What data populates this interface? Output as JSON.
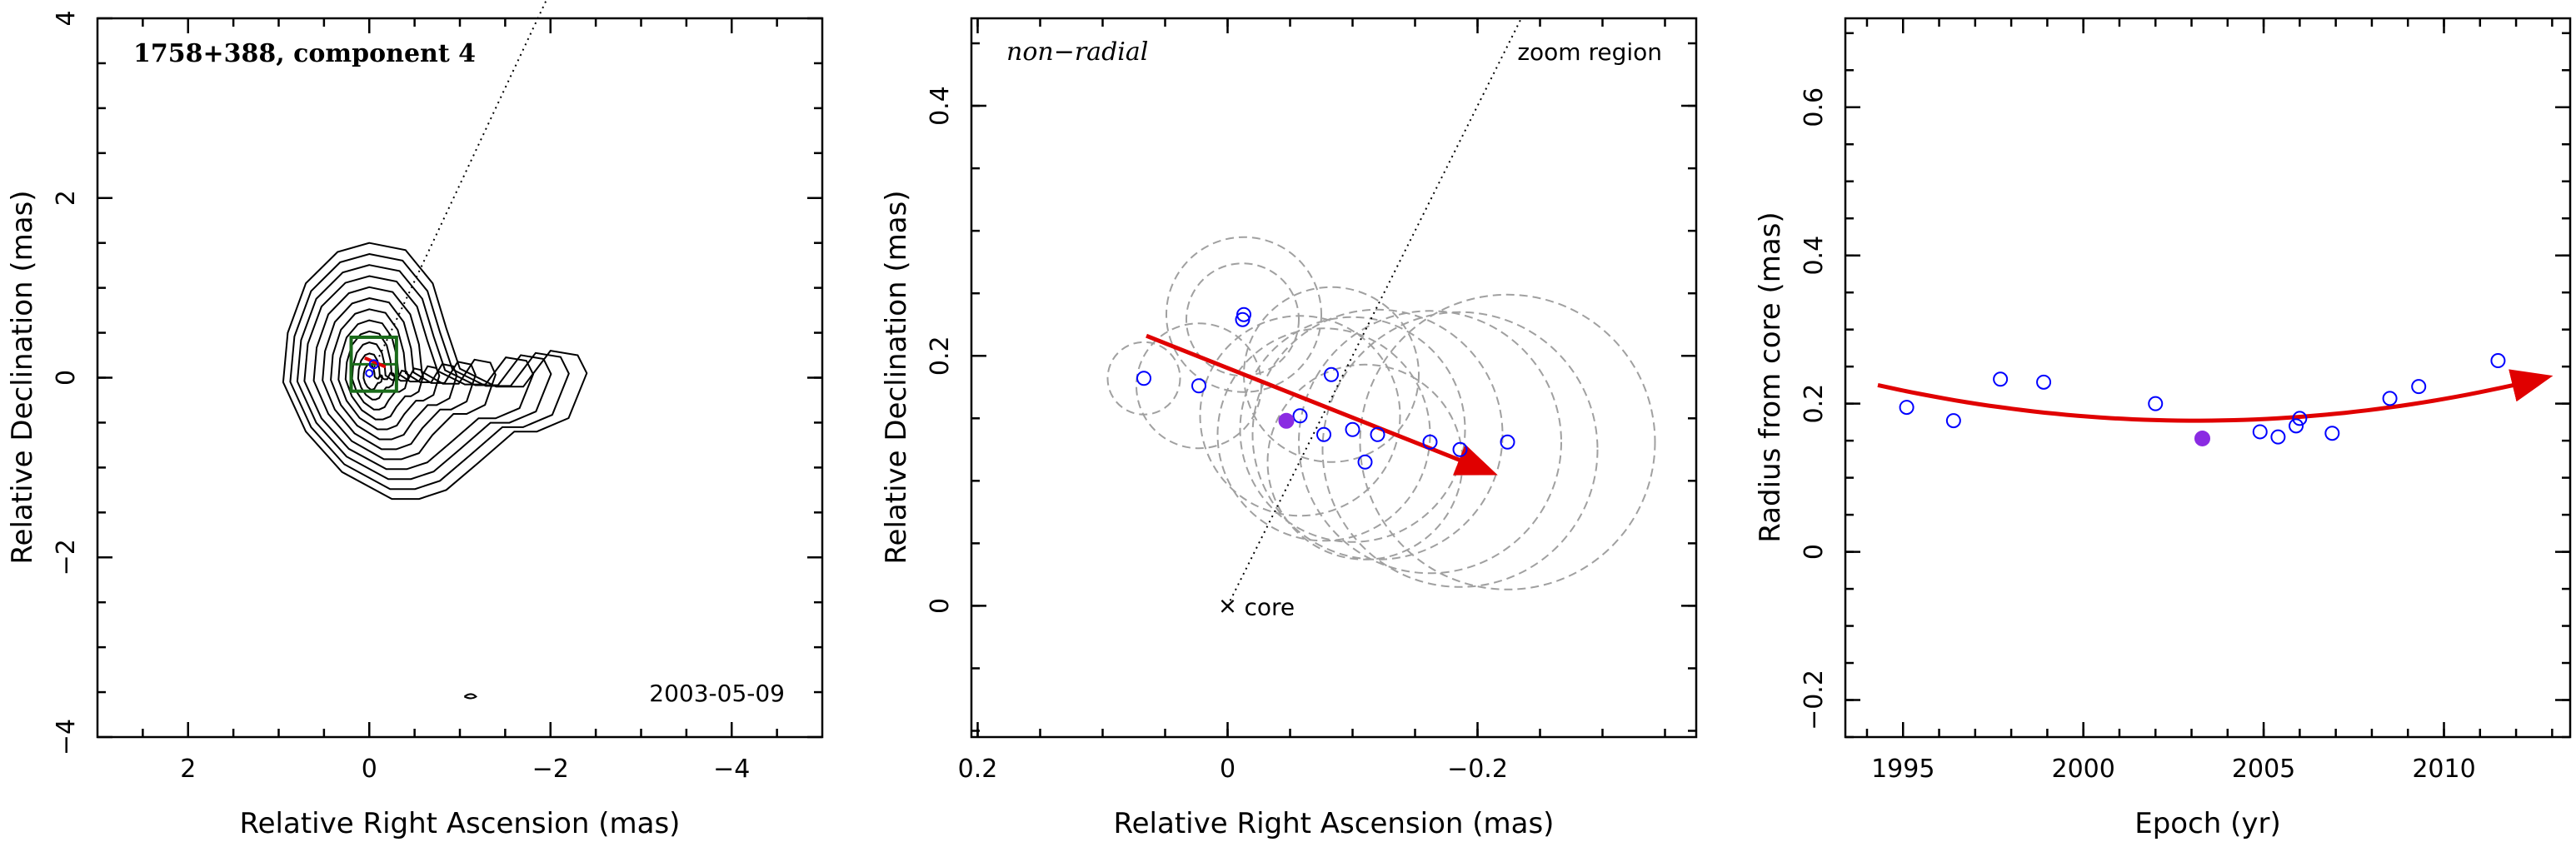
{
  "chart_data": [
    {
      "type": "contour",
      "annotation_title": "1758+388, component 4",
      "annotation_date": "2003-05-09",
      "xlabel": "Relative Right Ascension (mas)",
      "ylabel": "Relative Declination (mas)",
      "xlim": [
        3,
        -5
      ],
      "ylim": [
        -4,
        4
      ],
      "xticks": [
        2,
        0,
        -2,
        -4
      ],
      "xtick_labels": [
        "2",
        "0",
        "−2",
        "−4"
      ],
      "yticks": [
        -4,
        -2,
        0,
        2,
        4
      ],
      "ytick_labels": [
        "−4",
        "−2",
        "0",
        "2",
        "4"
      ],
      "jet_direction_line": [
        [
          0,
          0
        ],
        [
          -2,
          4.3
        ]
      ],
      "zoom_box": {
        "x": [
          0.2,
          -0.3
        ],
        "y": [
          -0.15,
          0.45
        ]
      },
      "component_position": [
        -0.05,
        0.15
      ],
      "contour_count": 12,
      "colors": {
        "contour": "#000000",
        "box": "#1a6b1a",
        "arrow": "#e00000",
        "component": "#0000ff"
      }
    },
    {
      "type": "scatter",
      "annotation_title": "non−radial",
      "annotation_zoom": "zoom region",
      "core_label": "core",
      "xlabel": "Relative Right Ascension (mas)",
      "ylabel": "Relative Declination (mas)",
      "xlim": [
        0.205,
        -0.375
      ],
      "ylim": [
        -0.105,
        0.47
      ],
      "xticks": [
        0.2,
        0,
        -0.2
      ],
      "xtick_labels": [
        "0.2",
        "0",
        "−0.2"
      ],
      "yticks": [
        0,
        0.2,
        0.4
      ],
      "ytick_labels": [
        "0",
        "0.2",
        "0.4"
      ],
      "points": [
        {
          "x": 0.067,
          "y": 0.182,
          "r": 0.029
        },
        {
          "x": 0.023,
          "y": 0.176,
          "r": 0.05
        },
        {
          "x": -0.013,
          "y": 0.233,
          "r": 0.062
        },
        {
          "x": -0.012,
          "y": 0.229,
          "r": 0.045
        },
        {
          "x": -0.058,
          "y": 0.152,
          "r": 0.08
        },
        {
          "x": -0.077,
          "y": 0.137,
          "r": 0.085
        },
        {
          "x": -0.083,
          "y": 0.185,
          "r": 0.07
        },
        {
          "x": -0.1,
          "y": 0.141,
          "r": 0.09
        },
        {
          "x": -0.11,
          "y": 0.115,
          "r": 0.078
        },
        {
          "x": -0.12,
          "y": 0.137,
          "r": 0.1
        },
        {
          "x": -0.162,
          "y": 0.131,
          "r": 0.105
        },
        {
          "x": -0.186,
          "y": 0.125,
          "r": 0.11
        },
        {
          "x": -0.224,
          "y": 0.131,
          "r": 0.118
        }
      ],
      "highlight_point": {
        "x": -0.047,
        "y": 0.148
      },
      "arrow": [
        [
          0.065,
          0.216
        ],
        [
          -0.21,
          0.107
        ]
      ],
      "jet_direction_line": [
        [
          0,
          0
        ],
        [
          -0.235,
          0.47
        ]
      ],
      "colors": {
        "points": "#0000ff",
        "highlight": "#8a2be2",
        "arrow": "#e00000",
        "circles": "#a0a0a0"
      }
    },
    {
      "type": "scatter",
      "xlabel": "Epoch (yr)",
      "ylabel": "Radius from core (mas)",
      "xlim": [
        1993.4,
        2013.5
      ],
      "ylim": [
        -0.25,
        0.72
      ],
      "xticks": [
        1995,
        2000,
        2005,
        2010
      ],
      "xtick_labels": [
        "1995",
        "2000",
        "2005",
        "2010"
      ],
      "yticks": [
        -0.2,
        0,
        0.2,
        0.4,
        0.6
      ],
      "ytick_labels": [
        "−0.2",
        "0",
        "0.2",
        "0.4",
        "0.6"
      ],
      "points": [
        {
          "x": 1995.1,
          "y": 0.195
        },
        {
          "x": 1996.4,
          "y": 0.177
        },
        {
          "x": 1997.7,
          "y": 0.233
        },
        {
          "x": 1998.9,
          "y": 0.229
        },
        {
          "x": 2002.0,
          "y": 0.2
        },
        {
          "x": 2004.9,
          "y": 0.162
        },
        {
          "x": 2005.4,
          "y": 0.155
        },
        {
          "x": 2005.9,
          "y": 0.17
        },
        {
          "x": 2006.0,
          "y": 0.18
        },
        {
          "x": 2006.9,
          "y": 0.16
        },
        {
          "x": 2008.5,
          "y": 0.207
        },
        {
          "x": 2009.3,
          "y": 0.223
        },
        {
          "x": 2011.5,
          "y": 0.258
        }
      ],
      "highlight_point": {
        "x": 2003.3,
        "y": 0.153
      },
      "fit_curve": [
        [
          1994.3,
          0.225
        ],
        [
          2003,
          0.177
        ],
        [
          2012.8,
          0.235
        ]
      ],
      "colors": {
        "points": "#0000ff",
        "highlight": "#8a2be2",
        "fit": "#e00000"
      }
    }
  ]
}
